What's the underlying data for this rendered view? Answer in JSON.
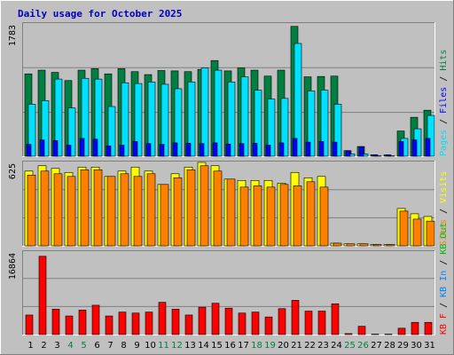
{
  "chart_data": {
    "type": "bar",
    "title": "Daily usage for October 2025",
    "categories": [
      "1",
      "2",
      "3",
      "4",
      "5",
      "6",
      "7",
      "8",
      "9",
      "10",
      "11",
      "12",
      "13",
      "14",
      "15",
      "16",
      "17",
      "18",
      "19",
      "20",
      "21",
      "22",
      "23",
      "24",
      "25",
      "26",
      "27",
      "28",
      "29",
      "30",
      "31"
    ],
    "weekend_days": [
      "4",
      "5",
      "11",
      "12",
      "18",
      "19",
      "25",
      "26"
    ],
    "panels": [
      {
        "max_label": "1783",
        "ymax": 1783,
        "series": [
          {
            "name": "Hits",
            "color": "#008040",
            "values": [
              1110,
              1160,
              1130,
              1020,
              1160,
              1180,
              1110,
              1180,
              1140,
              1100,
              1155,
              1150,
              1140,
              1170,
              1290,
              1150,
              1190,
              1160,
              1080,
              1160,
              1750,
              1070,
              1075,
              1080,
              75,
              130,
              20,
              18,
              340,
              525,
              620
            ]
          },
          {
            "name": "Files",
            "color": "#0000FF",
            "values": [
              160,
              220,
              210,
              150,
              240,
              230,
              140,
              150,
              200,
              170,
              160,
              180,
              175,
              170,
              180,
              165,
              170,
              175,
              150,
              180,
              240,
              190,
              200,
              190,
              75,
              130,
              20,
              18,
              200,
              220,
              240
            ]
          },
          {
            "name": "Pages",
            "color": "#00E0FF",
            "values": [
              700,
              750,
              1040,
              650,
              1050,
              1040,
              670,
              990,
              980,
              1000,
              970,
              910,
              1000,
              1190,
              1160,
              1000,
              1070,
              890,
              770,
              780,
              1520,
              880,
              890,
              700,
              30,
              30,
              5,
              5,
              240,
              370,
              550
            ]
          }
        ]
      },
      {
        "max_label": "625",
        "ymax": 625,
        "series": [
          {
            "name": "Visits",
            "color": "#FFFF00",
            "values": [
              560,
              600,
              580,
              550,
              590,
              590,
              520,
              560,
              590,
              560,
              460,
              540,
              590,
              625,
              600,
              500,
              490,
              490,
              490,
              470,
              550,
              510,
              520,
              20,
              15,
              15,
              10,
              10,
              280,
              240,
              220
            ]
          },
          {
            "name": "Sites",
            "color": "#FF8000",
            "values": [
              530,
              560,
              540,
              520,
              570,
              570,
              520,
              540,
              520,
              540,
              460,
              510,
              570,
              600,
              560,
              500,
              440,
              450,
              440,
              460,
              450,
              480,
              440,
              20,
              15,
              15,
              10,
              10,
              260,
              200,
              185
            ]
          }
        ]
      },
      {
        "max_label": "16864",
        "ymax": 16864,
        "series": [
          {
            "name": "KB F",
            "color": "#FF0000",
            "values": [
              4000,
              16000,
              5200,
              3800,
              5000,
              6000,
              3800,
              4600,
              4400,
              4600,
              6600,
              5200,
              4000,
              5600,
              6400,
              5400,
              4400,
              4600,
              3600,
              5300,
              7000,
              4800,
              4800,
              6300,
              200,
              1700,
              100,
              100,
              1300,
              2500,
              2500
            ]
          }
        ],
        "legend_extra": [
          {
            "name": "KB In",
            "color": "#0080FF"
          },
          {
            "name": "KB Out",
            "color": "#00C000"
          }
        ]
      }
    ]
  }
}
